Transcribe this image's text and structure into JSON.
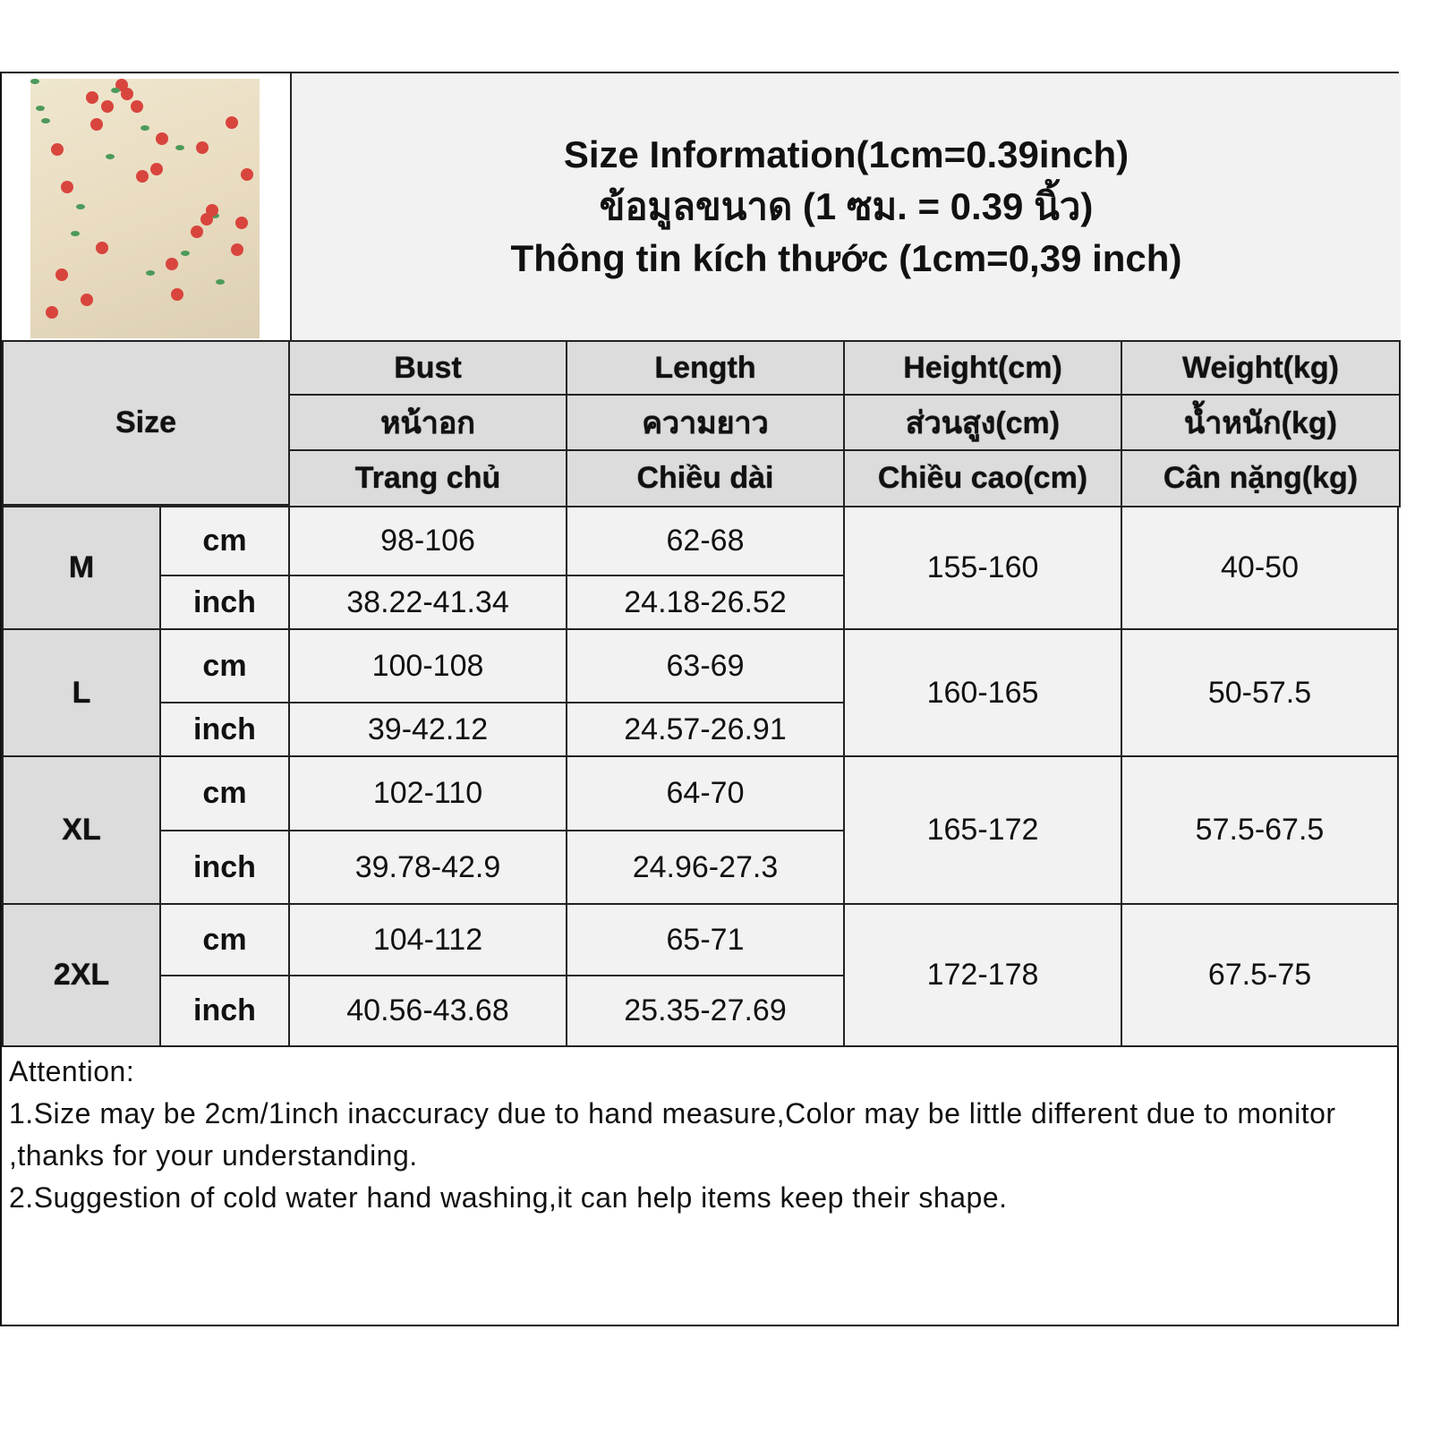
{
  "title": {
    "line1": "Size Information(1cm=0.39inch)",
    "line2": "ข้อมูลขนาด (1 ซม. = 0.39 นิ้ว)",
    "line3": "Thông tin kích thước (1cm=0,39 inch)"
  },
  "header": {
    "size": "Size",
    "columns": [
      {
        "en": "Bust",
        "th": "หน้าอก",
        "vi": "Trang chủ"
      },
      {
        "en": "Length",
        "th": "ความยาว",
        "vi": "Chiều dài"
      },
      {
        "en": "Height(cm)",
        "th": "ส่วนสูง(cm)",
        "vi": "Chiều cao(cm)"
      },
      {
        "en": "Weight(kg)",
        "th": "น้ำหนัก(kg)",
        "vi": "Cân nặng(kg)"
      }
    ]
  },
  "rows": [
    {
      "size": "M",
      "cm": {
        "unit": "cm",
        "bust": "98-106",
        "length": "62-68"
      },
      "inch": {
        "unit": "inch",
        "bust": "38.22-41.34",
        "length": "24.18-26.52"
      },
      "height": "155-160",
      "weight": "40-50"
    },
    {
      "size": "L",
      "cm": {
        "unit": "cm",
        "bust": "100-108",
        "length": "63-69"
      },
      "inch": {
        "unit": "inch",
        "bust": "39-42.12",
        "length": "24.57-26.91"
      },
      "height": "160-165",
      "weight": "50-57.5"
    },
    {
      "size": "XL",
      "cm": {
        "unit": "cm",
        "bust": "102-110",
        "length": "64-70"
      },
      "inch": {
        "unit": "inch",
        "bust": "39.78-42.9",
        "length": "24.96-27.3"
      },
      "height": "165-172",
      "weight": "57.5-67.5"
    },
    {
      "size": "2XL",
      "cm": {
        "unit": "cm",
        "bust": "104-112",
        "length": "65-71"
      },
      "inch": {
        "unit": "inch",
        "bust": "40.56-43.68",
        "length": "25.35-27.69"
      },
      "height": "172-178",
      "weight": "67.5-75"
    }
  ],
  "notes": [
    "Attention:",
    "1.Size may be 2cm/1inch inaccuracy due to hand measure,Color may be little different due to monitor ,thanks for your understanding.",
    "2.Suggestion of cold water hand washing,it can help items keep their shape."
  ]
}
